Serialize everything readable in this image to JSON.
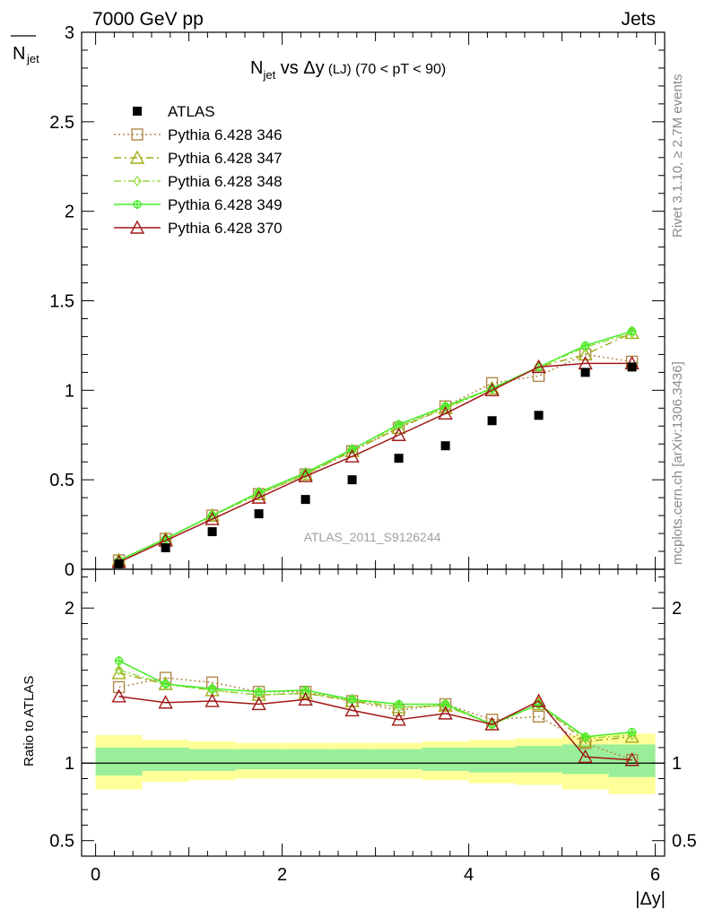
{
  "header": {
    "left": "7000 GeV pp",
    "right": "Jets"
  },
  "side_labels": {
    "rivet": "Rivet 3.1.10, ≥ 2.7M events",
    "mcplots": "mcplots.cern.ch [arXiv:1306.3436]"
  },
  "chart_data": {
    "type": "scatter",
    "title": {
      "n": "N",
      "jet": "jet",
      "vs": " vs Δy",
      "lj": " (LJ)",
      "range": " (70 < pT <  90)"
    },
    "watermark": "ATLAS_2011_S9126244",
    "xlabel": "|Δy|",
    "ylabel_top": {
      "n": "N",
      "jet": "jet"
    },
    "ylabel_ratio": "Ratio to ATLAS",
    "xlim": [
      -0.15,
      6.1
    ],
    "ylim_top": [
      0,
      3
    ],
    "ylim_ratio": [
      0.4,
      2.25
    ],
    "x_ticks": [
      "0",
      "2",
      "4",
      "6"
    ],
    "y_ticks_top": [
      "0",
      "0.5",
      "1",
      "1.5",
      "2",
      "2.5",
      "3"
    ],
    "y_ticks_ratio": [
      "0.5",
      "1",
      "2"
    ],
    "x": [
      0.25,
      0.75,
      1.25,
      1.75,
      2.25,
      2.75,
      3.25,
      3.75,
      4.25,
      4.75,
      5.25,
      5.75
    ],
    "bin_edges": [
      0,
      0.5,
      1,
      1.5,
      2,
      2.5,
      3,
      3.5,
      4,
      4.5,
      5,
      5.5,
      6
    ],
    "legend": {
      "placement": "top-left",
      "entries": [
        "ATLAS",
        "Pythia 6.428 346",
        "Pythia 6.428 347",
        "Pythia 6.428 348",
        "Pythia 6.428 349",
        "Pythia 6.428 370"
      ]
    },
    "atlas": {
      "name": "ATLAS",
      "color": "#000000",
      "values": [
        0.03,
        0.12,
        0.21,
        0.31,
        0.39,
        0.5,
        0.62,
        0.69,
        0.83,
        0.86,
        1.1,
        1.13
      ],
      "band_inner": [
        [
          0.92,
          1.1
        ],
        [
          0.95,
          1.1
        ],
        [
          0.95,
          1.09
        ],
        [
          0.96,
          1.09
        ],
        [
          0.96,
          1.09
        ],
        [
          0.96,
          1.09
        ],
        [
          0.96,
          1.09
        ],
        [
          0.95,
          1.1
        ],
        [
          0.94,
          1.1
        ],
        [
          0.94,
          1.11
        ],
        [
          0.93,
          1.12
        ],
        [
          0.91,
          1.12
        ]
      ],
      "band_outer": [
        [
          0.83,
          1.18
        ],
        [
          0.88,
          1.15
        ],
        [
          0.89,
          1.14
        ],
        [
          0.9,
          1.13
        ],
        [
          0.9,
          1.13
        ],
        [
          0.9,
          1.13
        ],
        [
          0.9,
          1.13
        ],
        [
          0.89,
          1.14
        ],
        [
          0.87,
          1.15
        ],
        [
          0.86,
          1.16
        ],
        [
          0.83,
          1.18
        ],
        [
          0.8,
          1.19
        ]
      ]
    },
    "series": [
      {
        "name": "Pythia 6.428 346",
        "color": "#b08848",
        "marker": "square",
        "dash": "2,3",
        "values": [
          0.05,
          0.17,
          0.3,
          0.42,
          0.53,
          0.66,
          0.79,
          0.91,
          1.04,
          1.08,
          1.2,
          1.16
        ],
        "ratio": [
          1.49,
          1.55,
          1.52,
          1.46,
          1.46,
          1.4,
          1.34,
          1.38,
          1.28,
          1.3,
          1.13,
          1.02
        ]
      },
      {
        "name": "Pythia 6.428 347",
        "color": "#a0ac18",
        "marker": "triangle",
        "dash": "8,4,2,4",
        "values": [
          0.05,
          0.17,
          0.3,
          0.42,
          0.53,
          0.66,
          0.79,
          0.9,
          1.01,
          1.13,
          1.2,
          1.32
        ],
        "ratio": [
          1.58,
          1.51,
          1.47,
          1.44,
          1.45,
          1.4,
          1.36,
          1.37,
          1.25,
          1.38,
          1.14,
          1.17
        ]
      },
      {
        "name": "Pythia 6.428 348",
        "color": "#98dc48",
        "marker": "diamond",
        "dash": "8,3,2,3",
        "values": [
          0.05,
          0.17,
          0.3,
          0.42,
          0.53,
          0.67,
          0.8,
          0.9,
          1.01,
          1.13,
          1.24,
          1.32
        ],
        "ratio": [
          1.6,
          1.51,
          1.47,
          1.44,
          1.45,
          1.41,
          1.36,
          1.37,
          1.25,
          1.38,
          1.16,
          1.18
        ]
      },
      {
        "name": "Pythia 6.428 349",
        "color": "#44ee24",
        "marker": "cross",
        "dash": "",
        "values": [
          0.05,
          0.17,
          0.3,
          0.43,
          0.54,
          0.67,
          0.81,
          0.91,
          1.01,
          1.13,
          1.25,
          1.33
        ],
        "ratio": [
          1.66,
          1.51,
          1.48,
          1.46,
          1.47,
          1.41,
          1.38,
          1.38,
          1.25,
          1.38,
          1.17,
          1.2
        ]
      },
      {
        "name": "Pythia 6.428 370",
        "color": "#a01818",
        "marker": "triangle",
        "dash": "",
        "values": [
          0.04,
          0.16,
          0.28,
          0.4,
          0.52,
          0.63,
          0.75,
          0.87,
          1.0,
          1.13,
          1.15,
          1.15
        ],
        "ratio": [
          1.43,
          1.39,
          1.4,
          1.38,
          1.41,
          1.34,
          1.28,
          1.32,
          1.25,
          1.4,
          1.04,
          1.02
        ]
      }
    ]
  }
}
